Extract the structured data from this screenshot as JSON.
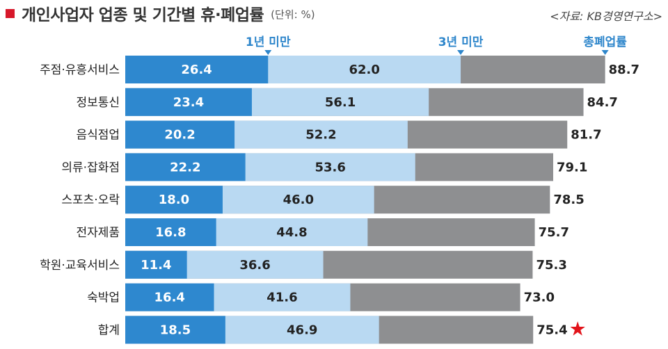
{
  "header": {
    "title": "개인사업자 업종 및 기간별 휴·폐업률",
    "unit": "(단위: %)",
    "source": "<자료: KB경영연구소>"
  },
  "colors": {
    "accent_square": "#d7182a",
    "seg_lt1": "#2e88cf",
    "seg_lt3": "#b9d9f2",
    "seg_rest": "#8e8f91",
    "header_text": "#2e86cb",
    "star": "#e2141b"
  },
  "chart_data": {
    "type": "bar",
    "orientation": "horizontal",
    "stacked": true,
    "categories": [
      "주점·유흥서비스",
      "정보통신",
      "음식점업",
      "의류·잡화점",
      "스포츠·오락",
      "전자제품",
      "학원·교육서비스",
      "숙박업",
      "합계"
    ],
    "series": [
      {
        "name": "1년 미만",
        "values": [
          26.4,
          23.4,
          20.2,
          22.2,
          18.0,
          16.8,
          11.4,
          16.4,
          18.5
        ],
        "labels": [
          "26.4",
          "23.4",
          "20.2",
          "22.2",
          "18.0",
          "16.8",
          "11.4",
          "16.4",
          "18.5"
        ]
      },
      {
        "name": "3년 미만",
        "values": [
          62.0,
          56.1,
          52.2,
          53.6,
          46.0,
          44.8,
          36.6,
          41.6,
          46.9
        ],
        "labels": [
          "62.0",
          "56.1",
          "52.2",
          "53.6",
          "46.0",
          "44.8",
          "36.6",
          "41.6",
          "46.9"
        ]
      },
      {
        "name": "총폐업률",
        "values": [
          88.7,
          84.7,
          81.7,
          79.1,
          78.5,
          75.7,
          75.3,
          73.0,
          75.4
        ],
        "labels": [
          "88.7",
          "84.7",
          "81.7",
          "79.1",
          "78.5",
          "75.7",
          "75.3",
          "73.0",
          "75.4"
        ]
      }
    ],
    "highlight_marker": "★",
    "highlight_category": "합계",
    "legend_position": "top",
    "grid": false
  }
}
